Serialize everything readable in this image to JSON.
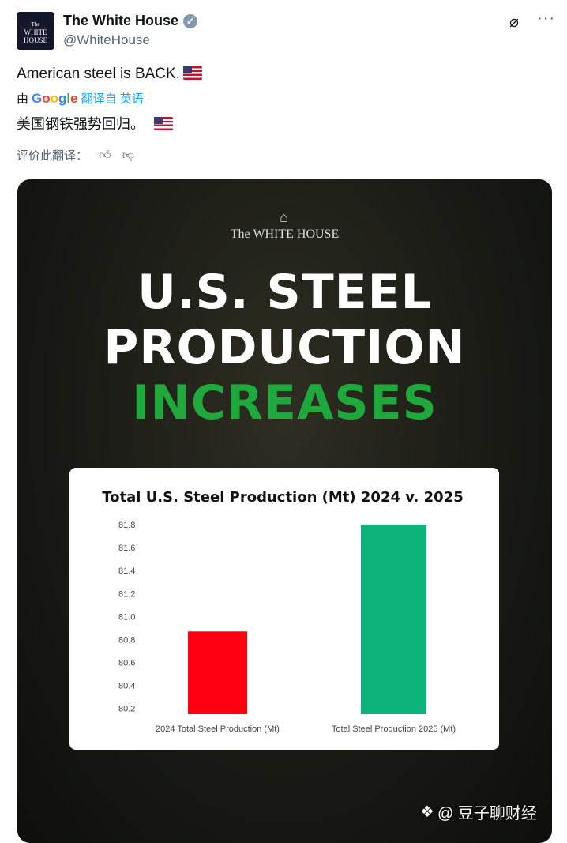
{
  "post": {
    "author_name": "The White House",
    "handle": "@WhiteHouse",
    "avatar_text": [
      "The",
      "WHITE",
      "HOUSE"
    ],
    "text": "American steel is BACK.",
    "translation": {
      "by": "由",
      "provider": "Google",
      "label": "翻译自 英语",
      "text": "美国钢铁强势回归。",
      "rate_label": "评价此翻译："
    }
  },
  "image": {
    "logo_text": "The WHITE HOUSE",
    "headline": [
      "U.S. STEEL",
      "PRODUCTION",
      "INCREASES"
    ],
    "colors": {
      "headline": "#ffffff",
      "accent": "#1fa83c"
    }
  },
  "chart_data": {
    "type": "bar",
    "title": "Total U.S. Steel Production (Mt) 2024 v. 2025",
    "categories": [
      "2024 Total Steel Production (Mt)",
      "Total Steel Production 2025 (Mt)"
    ],
    "values": [
      80.87,
      81.8
    ],
    "colors": [
      "#ff0010",
      "#0db27a"
    ],
    "yticks": [
      "80.2",
      "80.4",
      "80.6",
      "80.8",
      "81.0",
      "81.2",
      "81.4",
      "81.6",
      "81.8"
    ],
    "ylim": [
      80.15,
      81.8
    ],
    "xlabel": "",
    "ylabel": "",
    "grid": false
  },
  "watermark": "@ 豆子聊财经"
}
